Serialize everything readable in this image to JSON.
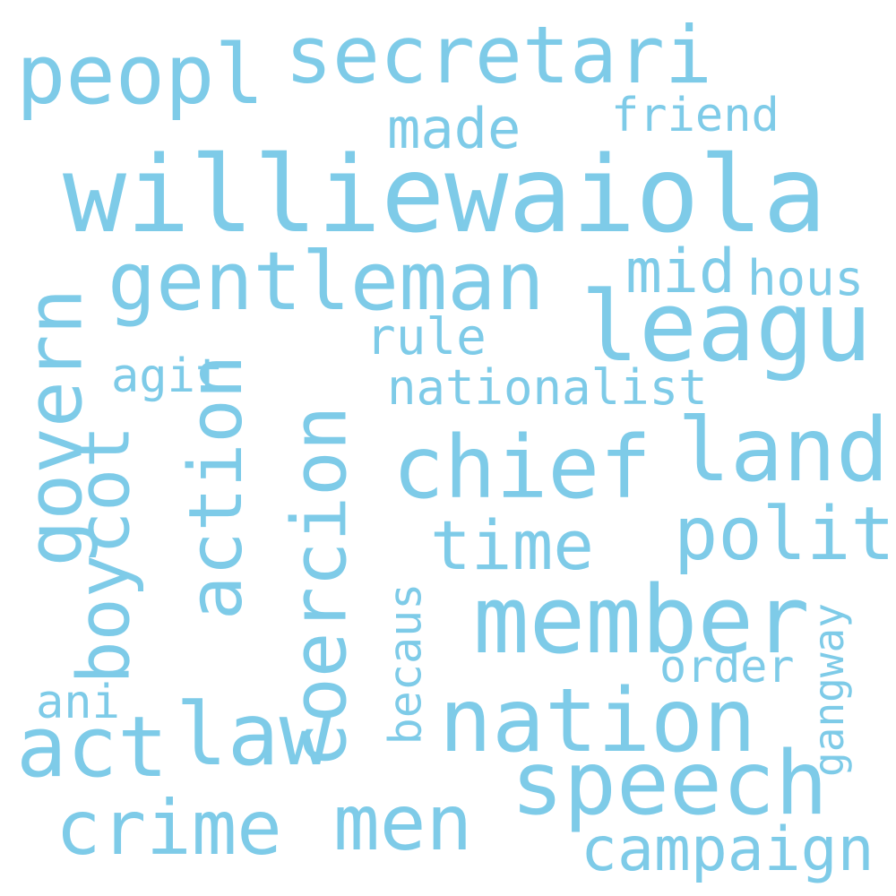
{
  "word_color": "#7ecbe8",
  "background": "#ffffff",
  "words": {
    "williewaiola": "williewaiola",
    "secretari": "secretari",
    "peopl": "peopl",
    "made": "made",
    "friend": "friend",
    "gentleman": "gentleman",
    "leagu": "leagu",
    "mid": "mid",
    "hous": "hous",
    "rule": "rule",
    "agit": "agit",
    "nationalist": "nationalist",
    "govern": "govern",
    "boycot": "boycot",
    "action": "action",
    "coercion": "coercion",
    "chief": "chief",
    "land": "land",
    "time": "time",
    "polit": "polit",
    "member": "member",
    "becaus": "becaus",
    "gangway": "gangway",
    "order": "order",
    "ani": "ani",
    "act": "act",
    "law": "law",
    "nation": "nation",
    "speech": "speech",
    "crime": "crime",
    "men": "men",
    "campaign": "campaign"
  }
}
